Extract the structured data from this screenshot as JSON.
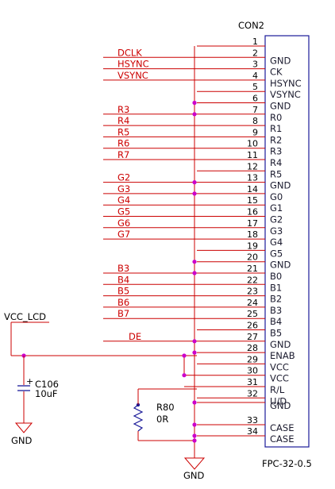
{
  "connector": {
    "refdes": "CON2",
    "part": "FPC-32-0.5",
    "pins": [
      {
        "num": "1",
        "name": ""
      },
      {
        "num": "2",
        "name": "GND",
        "net": "DCLK"
      },
      {
        "num": "3",
        "name": "CK",
        "net": "HSYNC"
      },
      {
        "num": "4",
        "name": "HSYNC",
        "net": "VSYNC"
      },
      {
        "num": "5",
        "name": "VSYNC"
      },
      {
        "num": "6",
        "name": "GND"
      },
      {
        "num": "7",
        "name": "R0",
        "net": "R3"
      },
      {
        "num": "8",
        "name": "R1",
        "net": "R4"
      },
      {
        "num": "9",
        "name": "R2",
        "net": "R5"
      },
      {
        "num": "10",
        "name": "R3",
        "net": "R6"
      },
      {
        "num": "11",
        "name": "R4",
        "net": "R7"
      },
      {
        "num": "12",
        "name": "R5"
      },
      {
        "num": "13",
        "name": "GND",
        "net": "G2"
      },
      {
        "num": "14",
        "name": "G0",
        "net": "G3"
      },
      {
        "num": "15",
        "name": "G1",
        "net": "G4"
      },
      {
        "num": "16",
        "name": "G2",
        "net": "G5"
      },
      {
        "num": "17",
        "name": "G3",
        "net": "G6"
      },
      {
        "num": "18",
        "name": "G4",
        "net": "G7"
      },
      {
        "num": "19",
        "name": "G5"
      },
      {
        "num": "20",
        "name": "GND"
      },
      {
        "num": "21",
        "name": "B0",
        "net": "B3"
      },
      {
        "num": "22",
        "name": "B1",
        "net": "B4"
      },
      {
        "num": "23",
        "name": "B2",
        "net": "B5"
      },
      {
        "num": "24",
        "name": "B3",
        "net": "B6"
      },
      {
        "num": "25",
        "name": "B4",
        "net": "B7"
      },
      {
        "num": "26",
        "name": "B5"
      },
      {
        "num": "27",
        "name": "GND",
        "net": "DE"
      },
      {
        "num": "28",
        "name": "ENAB"
      },
      {
        "num": "29",
        "name": "VCC"
      },
      {
        "num": "30",
        "name": "VCC"
      },
      {
        "num": "31",
        "name": "R/L"
      },
      {
        "num": "32",
        "name": "U/D"
      },
      {
        "num": "",
        "name": "GND"
      },
      {
        "num": "33",
        "name": "CASE"
      },
      {
        "num": "34",
        "name": "CASE"
      }
    ]
  },
  "power": {
    "net": "VCC_LCD"
  },
  "capacitor": {
    "refdes": "C106",
    "value": "10uF",
    "polarity": "+"
  },
  "resistor": {
    "refdes": "R80",
    "value": "0R"
  },
  "ground_labels": {
    "left": "GND",
    "bottom": "GND"
  },
  "colors": {
    "wire": "#cc0000",
    "junction": "#cc00cc",
    "symbol": "#1a1a99",
    "text": "#000000"
  }
}
